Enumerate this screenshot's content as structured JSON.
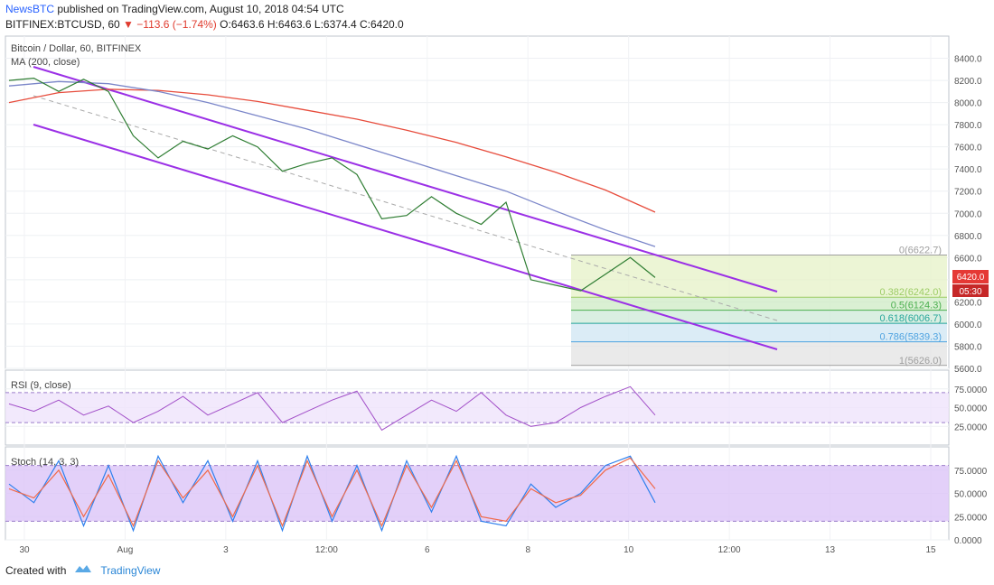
{
  "header": {
    "publisher": "NewsBTC",
    "published_text": "published on TradingView.com, August 10, 2018 04:54 UTC",
    "symbol_line": "BITFINEX:BTCUSD, 60",
    "change_text": "−113.6 (−1.74%)",
    "o_label": "O:",
    "o_value": "6463.6",
    "h_label": "H:",
    "h_value": "6463.6",
    "l_label": "L:",
    "l_value": "6374.4",
    "c_label": "C:",
    "c_value": "6420.0"
  },
  "footer": {
    "created_with": "Created with",
    "brand": "TradingView"
  },
  "chart_data": [
    {
      "type": "line",
      "title": "Bitcoin / Dollar, 60, BITFINEX",
      "indicator_label": "MA (200, close)",
      "ylim": [
        5600,
        8600
      ],
      "y_ticks": [
        5600,
        5800,
        6000,
        6200,
        6400,
        6600,
        6800,
        7000,
        7200,
        7400,
        7600,
        7800,
        8000,
        8200,
        8400
      ],
      "x_ticks": [
        "30",
        "Aug",
        "3",
        "12:00",
        "6",
        "8",
        "10",
        "12:00",
        "13",
        "15"
      ],
      "price_tag": "6420.0",
      "countdown_tag": "05:30",
      "series": [
        {
          "name": "MA (200, close)",
          "x": [
            0,
            10,
            20,
            30,
            40,
            50,
            60,
            70,
            80,
            90,
            100,
            110,
            120,
            130
          ],
          "values": [
            8000,
            8090,
            8120,
            8110,
            8070,
            8010,
            7930,
            7850,
            7750,
            7640,
            7510,
            7370,
            7210,
            7010
          ]
        },
        {
          "name": "",
          "x": [
            0,
            10,
            20,
            30,
            40,
            50,
            60,
            70,
            80,
            90,
            100,
            110,
            120,
            130
          ],
          "values": [
            8150,
            8190,
            8170,
            8100,
            8000,
            7880,
            7760,
            7620,
            7480,
            7340,
            7200,
            7020,
            6850,
            6700
          ]
        },
        {
          "name": "",
          "x": [
            0,
            5,
            10,
            15,
            20,
            25,
            30,
            35,
            40,
            45,
            50,
            55,
            60,
            65,
            70,
            75,
            80,
            85,
            90,
            95,
            100,
            105,
            110,
            115,
            120,
            125,
            130
          ],
          "values": [
            8200,
            8220,
            8100,
            8210,
            8100,
            7700,
            7500,
            7650,
            7580,
            7700,
            7600,
            7380,
            7450,
            7500,
            7350,
            6950,
            6980,
            7150,
            7000,
            6900,
            7100,
            6400,
            6350,
            6300,
            6450,
            6600,
            6420
          ]
        }
      ],
      "fibonacci": [
        {
          "label": "0(6622.7)",
          "value": 6622.7
        },
        {
          "label": "0.382(6242.0)",
          "value": 6242.0
        },
        {
          "label": "0.5(6124.3)",
          "value": 6124.3
        },
        {
          "label": "0.618(6006.7)",
          "value": 6006.7
        },
        {
          "label": "0.786(5839.3)",
          "value": 5839.3
        },
        {
          "label": "1(5626.0)",
          "value": 5626.0
        }
      ]
    },
    {
      "type": "line",
      "title": "RSI (9, close)",
      "ylim": [
        0,
        100
      ],
      "y_ticks": [
        25,
        50,
        75
      ],
      "tick_labels": [
        "25.0000",
        "50.0000",
        "75.0000"
      ],
      "band": [
        30,
        70
      ],
      "series": [
        {
          "name": "RSI (9, close)",
          "x": [
            0,
            5,
            10,
            15,
            20,
            25,
            30,
            35,
            40,
            45,
            50,
            55,
            60,
            65,
            70,
            75,
            80,
            85,
            90,
            95,
            100,
            105,
            110,
            115,
            120,
            125,
            130
          ],
          "values": [
            55,
            45,
            60,
            40,
            52,
            30,
            45,
            65,
            40,
            55,
            70,
            30,
            45,
            60,
            72,
            20,
            40,
            60,
            45,
            70,
            40,
            25,
            30,
            50,
            65,
            78,
            40
          ]
        }
      ]
    },
    {
      "type": "line",
      "title": "Stoch (14, 3, 3)",
      "ylim": [
        0,
        100
      ],
      "y_ticks": [
        0,
        25,
        50,
        75
      ],
      "tick_labels": [
        "0.0000",
        "25.0000",
        "50.0000",
        "75.0000"
      ],
      "band": [
        20,
        80
      ],
      "series": [
        {
          "name": "",
          "x": [
            0,
            5,
            10,
            15,
            20,
            25,
            30,
            35,
            40,
            45,
            50,
            55,
            60,
            65,
            70,
            75,
            80,
            85,
            90,
            95,
            100,
            105,
            110,
            115,
            120,
            125,
            130
          ],
          "values": [
            60,
            40,
            85,
            15,
            80,
            10,
            90,
            40,
            85,
            20,
            85,
            10,
            90,
            20,
            80,
            10,
            85,
            30,
            90,
            20,
            15,
            60,
            35,
            50,
            80,
            90,
            40
          ]
        },
        {
          "name": "",
          "x": [
            0,
            5,
            10,
            15,
            20,
            25,
            30,
            35,
            40,
            45,
            50,
            55,
            60,
            65,
            70,
            75,
            80,
            85,
            90,
            95,
            100,
            105,
            110,
            115,
            120,
            125,
            130
          ],
          "values": [
            55,
            45,
            75,
            25,
            70,
            15,
            85,
            45,
            75,
            25,
            80,
            15,
            85,
            25,
            75,
            15,
            80,
            35,
            85,
            25,
            20,
            55,
            40,
            48,
            75,
            88,
            55
          ]
        }
      ]
    }
  ]
}
